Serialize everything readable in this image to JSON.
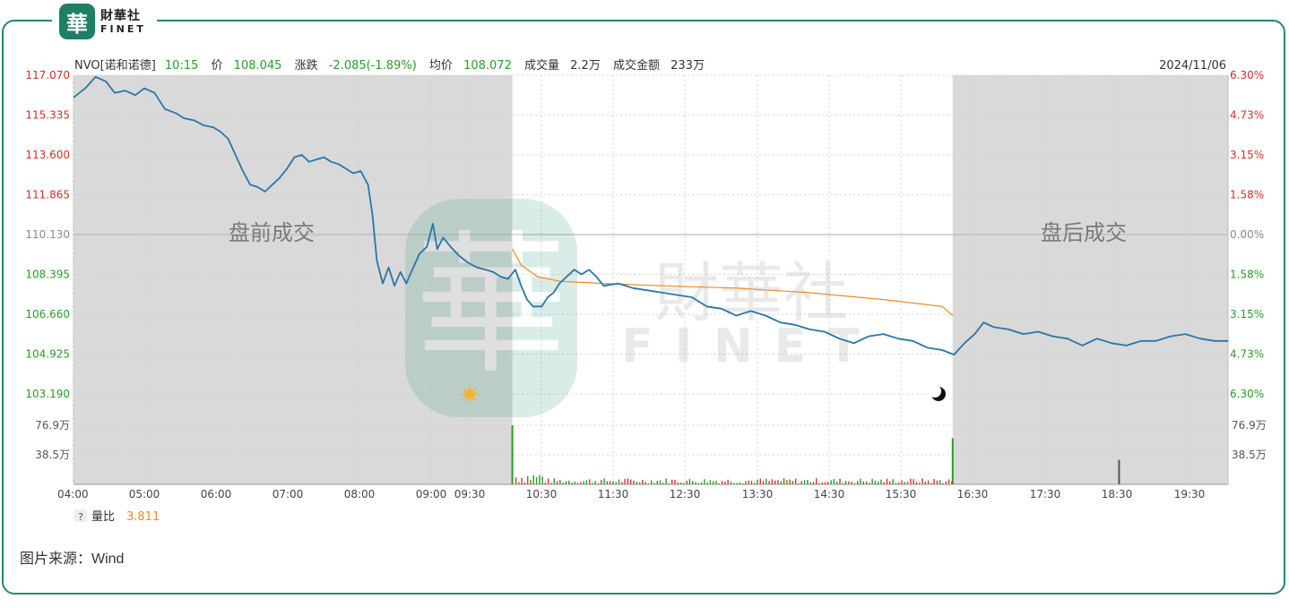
{
  "brand": {
    "mark": "華",
    "name_cn": "財華社",
    "name_en": "FINET"
  },
  "watermark": {
    "mark": "華",
    "name_cn": "財華社",
    "name_en": "FINET"
  },
  "header": {
    "symbol": "NVO[诺和诺德]",
    "time": "10:15",
    "price_label": "价",
    "price": "108.045",
    "change_label": "涨跌",
    "change": "-2.085(-1.89%)",
    "avg_label": "均价",
    "avg": "108.072",
    "volume_label": "成交量",
    "volume": "2.2万",
    "amount_label": "成交金额",
    "amount": "233万",
    "date": "2024/11/06"
  },
  "footer": {
    "ratio_help": "?",
    "ratio_label": "量比",
    "ratio_value": "3.811"
  },
  "source": "图片来源：Wind",
  "colors": {
    "price_line": "#2a76a8",
    "avg_line": "#f08a24",
    "up": "#e03030",
    "down": "#2a9a2a",
    "session_shade": "#d8d8d8",
    "frame": "#1f8a70"
  },
  "chart_data": {
    "type": "line",
    "x_ticks": [
      "04:00",
      "05:00",
      "06:00",
      "07:00",
      "08:00",
      "09:00",
      "09:30",
      "10:30",
      "11:30",
      "12:30",
      "13:30",
      "14:30",
      "15:30",
      "16:30",
      "17:30",
      "18:30",
      "19:30"
    ],
    "y_ticks_left": [
      "117.070",
      "115.335",
      "113.600",
      "111.865",
      "110.130",
      "108.395",
      "106.660",
      "104.925",
      "103.190"
    ],
    "y_ticks_right": [
      "6.30%",
      "4.73%",
      "3.15%",
      "1.58%",
      "0.00%",
      "1.58%",
      "3.15%",
      "4.73%",
      "6.30%"
    ],
    "vol_ticks": [
      "76.9万",
      "38.5万"
    ],
    "ylim": [
      103.19,
      117.07
    ],
    "prev_close": 110.13,
    "premarket_label": "盘前成交",
    "afterhours_label": "盘后成交",
    "price": [
      [
        0,
        116.1
      ],
      [
        8,
        116.5
      ],
      [
        15,
        117.0
      ],
      [
        22,
        116.8
      ],
      [
        28,
        116.3
      ],
      [
        35,
        116.4
      ],
      [
        42,
        116.2
      ],
      [
        48,
        116.5
      ],
      [
        55,
        116.3
      ],
      [
        62,
        115.6
      ],
      [
        70,
        115.4
      ],
      [
        75,
        115.2
      ],
      [
        82,
        115.1
      ],
      [
        88,
        114.9
      ],
      [
        95,
        114.8
      ],
      [
        100,
        114.6
      ],
      [
        105,
        114.3
      ],
      [
        110,
        113.6
      ],
      [
        115,
        112.9
      ],
      [
        120,
        112.3
      ],
      [
        125,
        112.2
      ],
      [
        130,
        112.0
      ],
      [
        135,
        112.3
      ],
      [
        140,
        112.6
      ],
      [
        145,
        113.0
      ],
      [
        150,
        113.5
      ],
      [
        155,
        113.6
      ],
      [
        160,
        113.3
      ],
      [
        165,
        113.4
      ],
      [
        170,
        113.5
      ],
      [
        175,
        113.3
      ],
      [
        180,
        113.2
      ],
      [
        185,
        113.0
      ],
      [
        190,
        112.8
      ],
      [
        195,
        112.9
      ],
      [
        200,
        112.3
      ],
      [
        203,
        111.0
      ],
      [
        206,
        109.0
      ],
      [
        210,
        108.0
      ],
      [
        214,
        108.7
      ],
      [
        218,
        107.9
      ],
      [
        222,
        108.5
      ],
      [
        226,
        108.0
      ],
      [
        230,
        108.6
      ],
      [
        235,
        109.3
      ],
      [
        240,
        109.6
      ],
      [
        244,
        110.6
      ],
      [
        247,
        109.5
      ],
      [
        251,
        110.0
      ],
      [
        256,
        109.6
      ],
      [
        262,
        109.2
      ],
      [
        268,
        108.9
      ],
      [
        274,
        108.7
      ],
      [
        280,
        108.6
      ],
      [
        285,
        108.5
      ],
      [
        290,
        108.3
      ],
      [
        295,
        108.2
      ],
      [
        300,
        108.6
      ],
      [
        304,
        107.9
      ],
      [
        308,
        107.3
      ],
      [
        312,
        107.0
      ],
      [
        318,
        107.0
      ],
      [
        322,
        107.4
      ],
      [
        326,
        107.6
      ],
      [
        330,
        108.0
      ],
      [
        335,
        108.3
      ],
      [
        340,
        108.6
      ],
      [
        345,
        108.4
      ],
      [
        350,
        108.6
      ],
      [
        355,
        108.3
      ],
      [
        360,
        107.9
      ],
      [
        370,
        108.0
      ],
      [
        380,
        107.8
      ],
      [
        390,
        107.7
      ],
      [
        400,
        107.6
      ],
      [
        410,
        107.5
      ],
      [
        420,
        107.4
      ],
      [
        430,
        107.0
      ],
      [
        440,
        106.9
      ],
      [
        450,
        106.6
      ],
      [
        460,
        106.8
      ],
      [
        470,
        106.6
      ],
      [
        480,
        106.3
      ],
      [
        490,
        106.2
      ],
      [
        500,
        106.0
      ],
      [
        510,
        105.9
      ],
      [
        520,
        105.6
      ],
      [
        530,
        105.4
      ],
      [
        540,
        105.7
      ],
      [
        550,
        105.8
      ],
      [
        560,
        105.6
      ],
      [
        570,
        105.5
      ],
      [
        580,
        105.2
      ],
      [
        590,
        105.1
      ],
      [
        598,
        104.9
      ],
      [
        605,
        105.4
      ],
      [
        612,
        105.8
      ],
      [
        618,
        106.3
      ],
      [
        625,
        106.1
      ],
      [
        635,
        106.0
      ],
      [
        645,
        105.8
      ],
      [
        655,
        105.9
      ],
      [
        665,
        105.7
      ],
      [
        675,
        105.6
      ],
      [
        685,
        105.3
      ],
      [
        695,
        105.6
      ],
      [
        705,
        105.4
      ],
      [
        715,
        105.3
      ],
      [
        725,
        105.5
      ],
      [
        735,
        105.5
      ],
      [
        745,
        105.7
      ],
      [
        755,
        105.8
      ],
      [
        765,
        105.6
      ],
      [
        775,
        105.5
      ],
      [
        784,
        105.5
      ]
    ],
    "avg_line": [
      [
        298,
        109.5
      ],
      [
        304,
        108.8
      ],
      [
        315,
        108.3
      ],
      [
        330,
        108.1
      ],
      [
        360,
        108.0
      ],
      [
        400,
        107.9
      ],
      [
        450,
        107.8
      ],
      [
        500,
        107.6
      ],
      [
        550,
        107.3
      ],
      [
        590,
        107.0
      ],
      [
        597,
        106.6
      ]
    ],
    "volume_spikes_10k": [
      [
        298,
        76.9
      ],
      [
        597,
        60.0
      ],
      [
        710,
        32.0
      ]
    ],
    "pre_session_end": 298,
    "post_session_start": 597,
    "x_total": 784
  }
}
